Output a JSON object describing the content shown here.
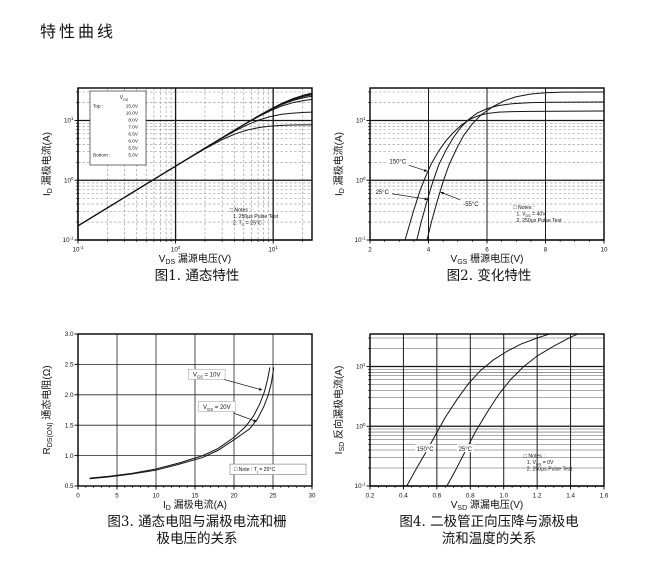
{
  "page": {
    "title": "特性曲线"
  },
  "chart_data": [
    {
      "id": "fig1",
      "type": "line",
      "caption": "图1. 通态特性",
      "xlabel": "V_{DS} 漏源电压(V)",
      "ylabel": "I_{D} 漏极电流(A)",
      "xscale": "log",
      "yscale": "log",
      "xlim": [
        0.1,
        25
      ],
      "ylim": [
        0.1,
        35
      ],
      "xticks": [
        {
          "v": 0.1,
          "l": "10^{-1}"
        },
        {
          "v": 1,
          "l": "10^{0}"
        },
        {
          "v": 10,
          "l": "10^{1}"
        }
      ],
      "yticks": [
        {
          "v": 0.1,
          "l": "10^{-1}"
        },
        {
          "v": 1,
          "l": "10^{0}"
        },
        {
          "v": 10,
          "l": "10^{1}"
        }
      ],
      "grid": {
        "xmajor": "bold",
        "ymajor": "bold",
        "xminor": "dash",
        "yminor": "dash"
      },
      "ron_ohm": 0.58,
      "legend": {
        "header": "V_{GS}",
        "position": "top-left",
        "rows": [
          {
            "pre": "Top :",
            "val": "15.0V"
          },
          {
            "val": "10.0V"
          },
          {
            "val": "8.0V"
          },
          {
            "val": "7.0V"
          },
          {
            "val": "6.5V"
          },
          {
            "val": "6.0V"
          },
          {
            "val": "5.5V"
          },
          {
            "pre": "Bottom :",
            "val": "5.0V"
          }
        ]
      },
      "series": [
        {
          "name": "VGS=15.0V",
          "isat": 33
        },
        {
          "name": "VGS=10.0V",
          "isat": 32.5
        },
        {
          "name": "VGS=8.0V",
          "isat": 31.5
        },
        {
          "name": "VGS=7.0V",
          "isat": 30
        },
        {
          "name": "VGS=6.5V",
          "isat": 28
        },
        {
          "name": "VGS=6.0V",
          "isat": 24
        },
        {
          "name": "VGS=5.5V",
          "isat": 14
        },
        {
          "name": "VGS=5.0V",
          "isat": 8.5
        }
      ],
      "notes": {
        "x": 3.6,
        "y": 0.3,
        "lines": [
          "□ Notes :",
          "1. 250μs Pulse Test",
          "2. T_{C} = 25°C"
        ]
      }
    },
    {
      "id": "fig2",
      "type": "line",
      "caption": "图2. 变化特性",
      "xlabel": "V_{GS} 栅源电压(V)",
      "ylabel": "I_{D} 漏极电流(A)",
      "xscale": "linear",
      "yscale": "log",
      "xlim": [
        2,
        10
      ],
      "ylim": [
        0.1,
        35
      ],
      "xminorstep": 0.5,
      "xticks": [
        {
          "v": 2,
          "l": "2"
        },
        {
          "v": 4,
          "l": "4"
        },
        {
          "v": 6,
          "l": "6"
        },
        {
          "v": 8,
          "l": "8"
        },
        {
          "v": 10,
          "l": "10"
        }
      ],
      "yticks": [
        {
          "v": 0.1,
          "l": "10^{-1}"
        },
        {
          "v": 1,
          "l": "10^{0}"
        },
        {
          "v": 10,
          "l": "10^{1}"
        }
      ],
      "grid": {
        "xmajor": "thin2",
        "ymajor": "bold",
        "yminor": "dash"
      },
      "series": [
        {
          "name": "150°C",
          "points": [
            [
              3.2,
              0.1
            ],
            [
              3.35,
              0.18
            ],
            [
              3.5,
              0.32
            ],
            [
              3.7,
              0.65
            ],
            [
              3.9,
              1.15
            ],
            [
              4.1,
              1.9
            ],
            [
              4.35,
              3.1
            ],
            [
              4.6,
              4.6
            ],
            [
              4.85,
              6.3
            ],
            [
              5.1,
              8.2
            ],
            [
              5.4,
              10.4
            ],
            [
              5.7,
              12.0
            ],
            [
              6.0,
              13.1
            ],
            [
              6.4,
              13.8
            ],
            [
              6.9,
              14.1
            ],
            [
              7.5,
              14.25
            ],
            [
              10,
              14.4
            ]
          ]
        },
        {
          "name": "25°C",
          "points": [
            [
              3.6,
              0.1
            ],
            [
              3.75,
              0.2
            ],
            [
              3.95,
              0.45
            ],
            [
              4.15,
              0.95
            ],
            [
              4.35,
              1.8
            ],
            [
              4.6,
              3.2
            ],
            [
              4.85,
              5.2
            ],
            [
              5.1,
              7.6
            ],
            [
              5.35,
              10.2
            ],
            [
              5.65,
              13.2
            ],
            [
              6.0,
              15.8
            ],
            [
              6.4,
              17.8
            ],
            [
              6.9,
              19.2
            ],
            [
              7.5,
              19.9
            ],
            [
              8.2,
              20.2
            ],
            [
              10,
              20.4
            ]
          ]
        },
        {
          "name": "-55°C",
          "points": [
            [
              3.95,
              0.1
            ],
            [
              4.1,
              0.2
            ],
            [
              4.3,
              0.45
            ],
            [
              4.5,
              0.95
            ],
            [
              4.7,
              1.8
            ],
            [
              4.95,
              3.3
            ],
            [
              5.2,
              5.6
            ],
            [
              5.5,
              8.8
            ],
            [
              5.8,
              12.5
            ],
            [
              6.2,
              17
            ],
            [
              6.6,
              21.5
            ],
            [
              7.0,
              25
            ],
            [
              7.5,
              27.8
            ],
            [
              8.0,
              29.2
            ],
            [
              8.6,
              29.8
            ],
            [
              10,
              30
            ]
          ]
        }
      ],
      "annotations": [
        {
          "text": "150°C",
          "x": 2.95,
          "y": 2.05,
          "tx": 3.95,
          "ty": 1.42,
          "bg": true
        },
        {
          "text": "25°C",
          "x": 2.42,
          "y": 0.63,
          "tx": 3.97,
          "ty": 0.48,
          "bg": true
        },
        {
          "text": "-55°C",
          "x": 5.45,
          "y": 0.4,
          "tx": 4.42,
          "ty": 0.63,
          "bg": true
        }
      ],
      "notes": {
        "x": 6.9,
        "y": 0.33,
        "lines": [
          "□ Notes :",
          "1. V_{DS} = 40V",
          "2. 250μs Pulse Test"
        ]
      }
    },
    {
      "id": "fig3",
      "type": "line",
      "caption": "图3. 通态电阻与漏极电流和栅\n极电压的关系",
      "xlabel": "I_{D} 漏极电流(A)",
      "ylabel": "R_{DS(ON)} 通态电阻(Ω)",
      "xscale": "linear",
      "yscale": "linear",
      "xlim": [
        0,
        30
      ],
      "ylim": [
        0.5,
        3.0
      ],
      "xminorstep": 1,
      "xticks": [
        {
          "v": 0,
          "l": "0"
        },
        {
          "v": 5,
          "l": "5"
        },
        {
          "v": 10,
          "l": "10"
        },
        {
          "v": 15,
          "l": "15"
        },
        {
          "v": 20,
          "l": "20"
        },
        {
          "v": 25,
          "l": "25"
        },
        {
          "v": 30,
          "l": "30"
        }
      ],
      "yticks": [
        {
          "v": 0.5,
          "l": "0.5"
        },
        {
          "v": 1.0,
          "l": "1.0"
        },
        {
          "v": 1.5,
          "l": "1.5"
        },
        {
          "v": 2.0,
          "l": "2.0"
        },
        {
          "v": 2.5,
          "l": "2.5"
        },
        {
          "v": 3.0,
          "l": "3.0"
        }
      ],
      "grid": {
        "xmajor": "thin",
        "ymajor": "thin"
      },
      "series": [
        {
          "name": "VGS=10V",
          "points": [
            [
              1.5,
              0.63
            ],
            [
              4,
              0.66
            ],
            [
              7,
              0.71
            ],
            [
              10,
              0.78
            ],
            [
              13,
              0.88
            ],
            [
              16,
              1.0
            ],
            [
              18,
              1.12
            ],
            [
              20,
              1.3
            ],
            [
              21.5,
              1.48
            ],
            [
              22.5,
              1.65
            ],
            [
              23.3,
              1.85
            ],
            [
              23.9,
              2.05
            ],
            [
              24.3,
              2.25
            ],
            [
              24.6,
              2.45
            ]
          ]
        },
        {
          "name": "VGS=20V",
          "points": [
            [
              1.5,
              0.62
            ],
            [
              4,
              0.65
            ],
            [
              7,
              0.7
            ],
            [
              10,
              0.76
            ],
            [
              13,
              0.86
            ],
            [
              16,
              0.97
            ],
            [
              18,
              1.09
            ],
            [
              20,
              1.26
            ],
            [
              22,
              1.44
            ],
            [
              23,
              1.6
            ],
            [
              23.8,
              1.8
            ],
            [
              24.4,
              2.0
            ],
            [
              24.8,
              2.2
            ],
            [
              25.1,
              2.45
            ]
          ]
        }
      ],
      "annotations": [
        {
          "text": "V_{GS} = 10V",
          "x": 16.5,
          "y": 2.33,
          "tx": 23.6,
          "ty": 2.08,
          "box": true
        },
        {
          "text": "V_{GS} = 20V",
          "x": 17.8,
          "y": 1.8,
          "tx": 22.9,
          "ty": 1.56,
          "box": true
        }
      ],
      "notes": {
        "x": 20.0,
        "y": 0.745,
        "lines": [
          "□ Note : T_{j} = 25°C"
        ],
        "box": true
      }
    },
    {
      "id": "fig4",
      "type": "line",
      "caption": "图4. 二极管正向压降与源极电\n流和温度的关系",
      "xlabel": "V_{SD} 源漏电压(V)",
      "ylabel": "I_{SD} 反向漏极电流(A)",
      "xscale": "linear",
      "yscale": "log",
      "xlim": [
        0.2,
        1.6
      ],
      "ylim": [
        0.1,
        35
      ],
      "xminorstep": 0.05,
      "xticks": [
        {
          "v": 0.2,
          "l": "0.2"
        },
        {
          "v": 0.4,
          "l": "0.4"
        },
        {
          "v": 0.6,
          "l": "0.6"
        },
        {
          "v": 0.8,
          "l": "0.8"
        },
        {
          "v": 1.0,
          "l": "1.0"
        },
        {
          "v": 1.2,
          "l": "1.2"
        },
        {
          "v": 1.4,
          "l": "1.4"
        },
        {
          "v": 1.6,
          "l": "1.6"
        }
      ],
      "yticks": [
        {
          "v": 0.1,
          "l": "10^{-1}"
        },
        {
          "v": 1,
          "l": "10^{0}"
        },
        {
          "v": 10,
          "l": "10^{1}"
        }
      ],
      "grid": {
        "xmajor": "thin2",
        "ymajor": "bold",
        "yminor": "solidlight"
      },
      "series": [
        {
          "name": "150°C",
          "points": [
            [
              0.42,
              0.1
            ],
            [
              0.47,
              0.18
            ],
            [
              0.53,
              0.35
            ],
            [
              0.59,
              0.7
            ],
            [
              0.65,
              1.4
            ],
            [
              0.72,
              2.8
            ],
            [
              0.79,
              5.2
            ],
            [
              0.86,
              8.5
            ],
            [
              0.94,
              13
            ],
            [
              1.02,
              18
            ],
            [
              1.1,
              23.5
            ],
            [
              1.2,
              30
            ],
            [
              1.3,
              37
            ],
            [
              1.38,
              44
            ]
          ]
        },
        {
          "name": "25°C",
          "points": [
            [
              0.66,
              0.1
            ],
            [
              0.71,
              0.18
            ],
            [
              0.77,
              0.38
            ],
            [
              0.83,
              0.8
            ],
            [
              0.9,
              1.7
            ],
            [
              0.97,
              3.4
            ],
            [
              1.04,
              6
            ],
            [
              1.12,
              10
            ],
            [
              1.2,
              15
            ],
            [
              1.3,
              22
            ],
            [
              1.4,
              31
            ],
            [
              1.5,
              41
            ],
            [
              1.56,
              48
            ]
          ]
        }
      ],
      "annotations": [
        {
          "text": "150°C",
          "x": 0.53,
          "y": 0.42,
          "bg": true
        },
        {
          "text": "25°C",
          "x": 0.77,
          "y": 0.42,
          "bg": true
        }
      ],
      "notes": {
        "x": 1.12,
        "y": 0.3,
        "lines": [
          "□ Notes :",
          "1. V_{GS} = 0V",
          "2. 250μs Pulse Test"
        ]
      }
    }
  ]
}
